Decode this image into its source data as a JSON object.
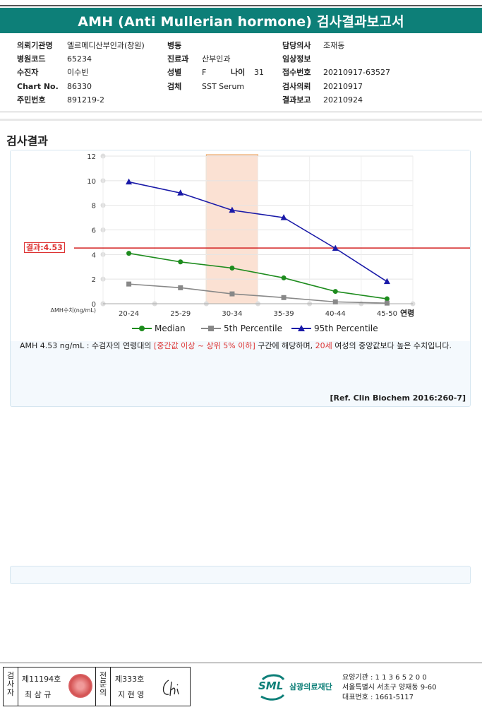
{
  "title": "AMH (Anti Mullerian hormone) 검사결과보고서",
  "patient": {
    "fields": [
      {
        "label": "의뢰기관명",
        "value": "엘르메디산부인과(창원)"
      },
      {
        "label": "병원코드",
        "value": "65234"
      },
      {
        "label": "수진자",
        "value": "이수빈"
      },
      {
        "label": "Chart No.",
        "value": "86330"
      },
      {
        "label": "주민번호",
        "value": "891219-2"
      },
      {
        "label": "병동",
        "value": ""
      },
      {
        "label": "진료과",
        "value": "산부인과"
      },
      {
        "label": "성별",
        "value": "F"
      },
      {
        "label": "나이",
        "value": "31"
      },
      {
        "label": "검체",
        "value": "SST Serum"
      },
      {
        "label": "담당의사",
        "value": "조재동"
      },
      {
        "label": "임상정보",
        "value": ""
      },
      {
        "label": "접수번호",
        "value": "20210917-63527"
      },
      {
        "label": "검사의뢰",
        "value": "20210917"
      },
      {
        "label": "결과보고",
        "value": "20210924"
      }
    ]
  },
  "section_title": "검사결과",
  "chart_data": {
    "type": "line",
    "categories": [
      "20-24",
      "25-29",
      "30-34",
      "35-39",
      "40-44",
      "45-50"
    ],
    "xlabel": "연령",
    "ylabel": "AMH수치(ng/mL)",
    "ylim": [
      0,
      12
    ],
    "yticks": [
      0,
      2,
      4,
      6,
      8,
      10,
      12
    ],
    "grid": true,
    "legend_position": "bottom",
    "highlight_category": "30-34",
    "result_line": {
      "value": 4.53,
      "label": "결과:4.53",
      "color": "#d32020"
    },
    "series": [
      {
        "name": "Median",
        "color": "#1e8c1e",
        "marker": "circle",
        "values": [
          4.1,
          3.4,
          2.9,
          2.1,
          1.0,
          0.4
        ]
      },
      {
        "name": "5th Percentile",
        "color": "#888888",
        "marker": "square",
        "values": [
          1.6,
          1.3,
          0.8,
          0.5,
          0.15,
          0.05
        ]
      },
      {
        "name": "95th Percentile",
        "color": "#1a1aa8",
        "marker": "triangle",
        "values": [
          9.9,
          9.0,
          7.6,
          7.0,
          4.5,
          1.8
        ]
      }
    ]
  },
  "description": {
    "p1": "AMH  4.53 ng/mL : 수검자의 연령대의 ",
    "p2": "[중간값 이상 ~ 상위 5% 이하]",
    "p3": " 구간에 해당하며, ",
    "p4": "20세",
    "p5": " 여성의 중앙값보다 높은 수치입니다."
  },
  "reference": "[Ref. Clin Biochem 2016:260-7]",
  "footer": {
    "examiner_label": "검사자",
    "examiner_no": "제11194호",
    "examiner_name": "최 삼 규",
    "approver_label": "전문의",
    "approver_no": "제333호",
    "approver_name": "지 현 영",
    "logo_text": "SML",
    "org_name": "삼광의료재단",
    "code_line": "요양기관 : 1 1 3 6 5 2 0 0",
    "address_line": "서울특별시 서초구 양재동 9-60",
    "phone_line": "대표번호 : 1661-5117"
  }
}
